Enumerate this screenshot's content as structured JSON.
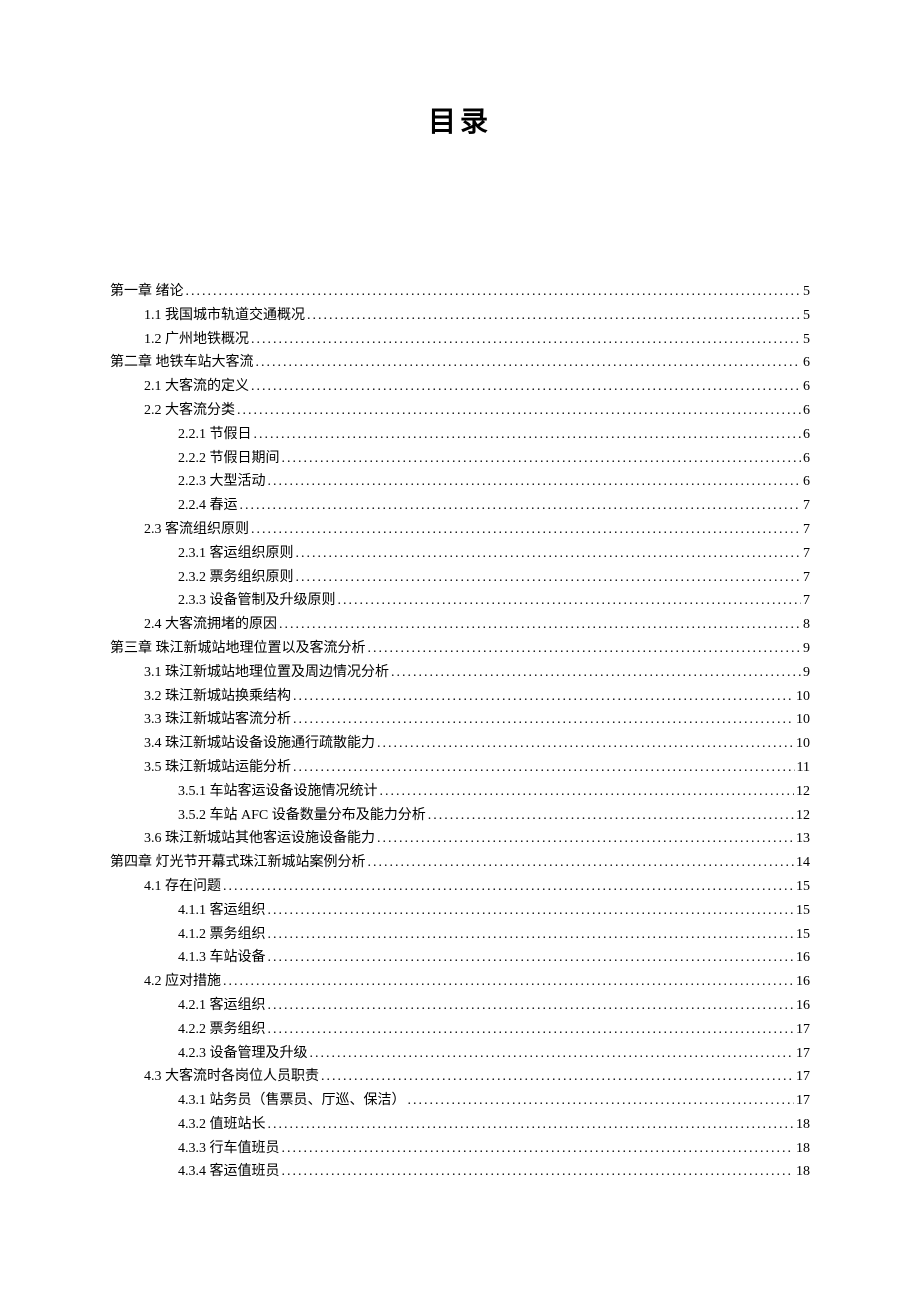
{
  "title": "目录",
  "entries": [
    {
      "level": 0,
      "text": "第一章  绪论",
      "page": "5"
    },
    {
      "level": 1,
      "text": "1.1 我国城市轨道交通概况",
      "page": "5"
    },
    {
      "level": 1,
      "text": "1.2  广州地铁概况",
      "page": "5"
    },
    {
      "level": 0,
      "text": "第二章  地铁车站大客流",
      "page": "6"
    },
    {
      "level": 1,
      "text": "2.1 大客流的定义",
      "page": "6"
    },
    {
      "level": 1,
      "text": "2.2 大客流分类",
      "page": "6"
    },
    {
      "level": 2,
      "text": "2.2.1 节假日",
      "page": "6"
    },
    {
      "level": 2,
      "text": "2.2.2 节假日期间",
      "page": "6"
    },
    {
      "level": 2,
      "text": "2.2.3 大型活动",
      "page": "6"
    },
    {
      "level": 2,
      "text": "2.2.4 春运",
      "page": "7"
    },
    {
      "level": 1,
      "text": "2.3  客流组织原则",
      "page": "7"
    },
    {
      "level": 2,
      "text": "2.3.1  客运组织原则",
      "page": "7"
    },
    {
      "level": 2,
      "text": "2.3.2 票务组织原则",
      "page": "7"
    },
    {
      "level": 2,
      "text": "2.3.3 设备管制及升级原则",
      "page": "7"
    },
    {
      "level": 1,
      "text": "2.4 大客流拥堵的原因",
      "page": "8"
    },
    {
      "level": 0,
      "text": "第三章  珠江新城站地理位置以及客流分析",
      "page": "9"
    },
    {
      "level": 1,
      "text": "3.1 珠江新城站地理位置及周边情况分析",
      "page": "9"
    },
    {
      "level": 1,
      "text": "3.2 珠江新城站换乘结构",
      "page": "10"
    },
    {
      "level": 1,
      "text": "3.3 珠江新城站客流分析",
      "page": "10"
    },
    {
      "level": 1,
      "text": "3.4 珠江新城站设备设施通行疏散能力",
      "page": "10"
    },
    {
      "level": 1,
      "text": "3.5 珠江新城站运能分析",
      "page": "11"
    },
    {
      "level": 2,
      "text": "3.5.1 车站客运设备设施情况统计",
      "page": "12"
    },
    {
      "level": 2,
      "text": "3.5.2 车站 AFC 设备数量分布及能力分析",
      "page": "12"
    },
    {
      "level": 1,
      "text": "3.6 珠江新城站其他客运设施设备能力",
      "page": "13"
    },
    {
      "level": 0,
      "text": "第四章  灯光节开幕式珠江新城站案例分析",
      "page": "14"
    },
    {
      "level": 1,
      "text": "4.1  存在问题",
      "page": "15"
    },
    {
      "level": 2,
      "text": "4.1.1 客运组织",
      "page": "15"
    },
    {
      "level": 2,
      "text": "4.1.2 票务组织",
      "page": "15"
    },
    {
      "level": 2,
      "text": "4.1.3 车站设备",
      "page": "16"
    },
    {
      "level": 1,
      "text": "4.2 应对措施",
      "page": "16"
    },
    {
      "level": 2,
      "text": "4.2.1 客运组织",
      "page": "16"
    },
    {
      "level": 2,
      "text": "4.2.2 票务组织",
      "page": "17"
    },
    {
      "level": 2,
      "text": "4.2.3 设备管理及升级",
      "page": "17"
    },
    {
      "level": 1,
      "text": "4.3  大客流时各岗位人员职责",
      "page": "17"
    },
    {
      "level": 2,
      "text": "4.3.1 站务员（售票员、厅巡、保洁）",
      "page": "17"
    },
    {
      "level": 2,
      "text": "4.3.2 值班站长",
      "page": "18"
    },
    {
      "level": 2,
      "text": "4.3.3 行车值班员",
      "page": "18"
    },
    {
      "level": 2,
      "text": "4.3.4 客运值班员",
      "page": "18"
    }
  ]
}
